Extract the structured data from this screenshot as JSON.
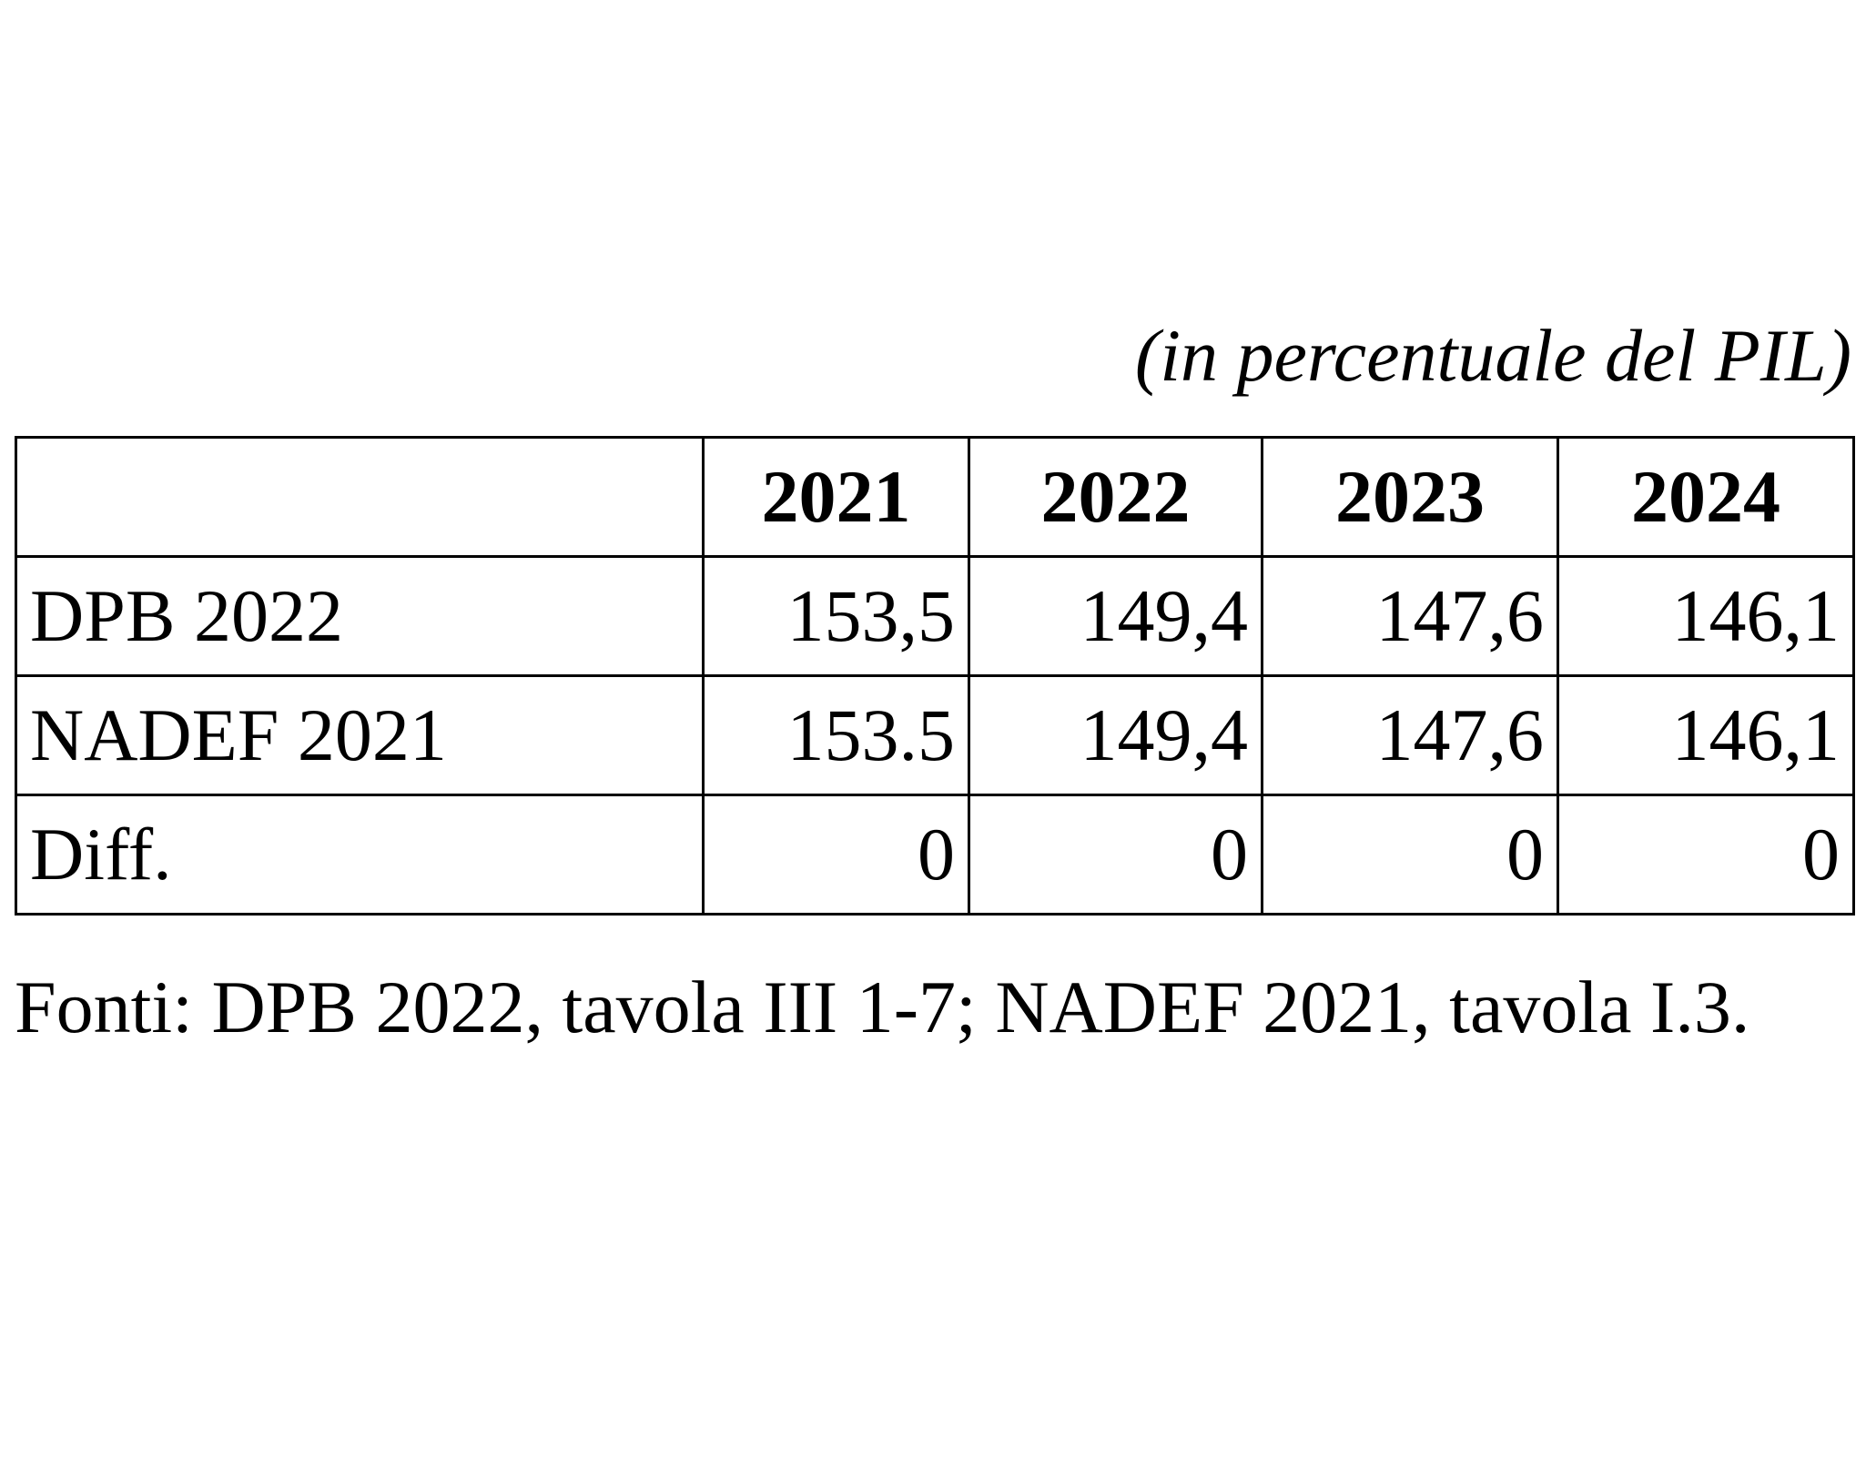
{
  "unit_note": "(in percentuale del PIL)",
  "table": {
    "header": [
      "",
      "2021",
      "2022",
      "2023",
      "2024"
    ],
    "rows": [
      {
        "label": "DPB 2022",
        "values": [
          "153,5",
          "149,4",
          "147,6",
          "146,1"
        ]
      },
      {
        "label": "NADEF 2021",
        "values": [
          "153.5",
          "149,4",
          "147,6",
          "146,1"
        ]
      },
      {
        "label": "Diff.",
        "values": [
          "0",
          "0",
          "0",
          "0"
        ]
      }
    ]
  },
  "source_note": "Fonti: DPB 2022, tavola III 1-7; NADEF 2021, tavola I.3."
}
